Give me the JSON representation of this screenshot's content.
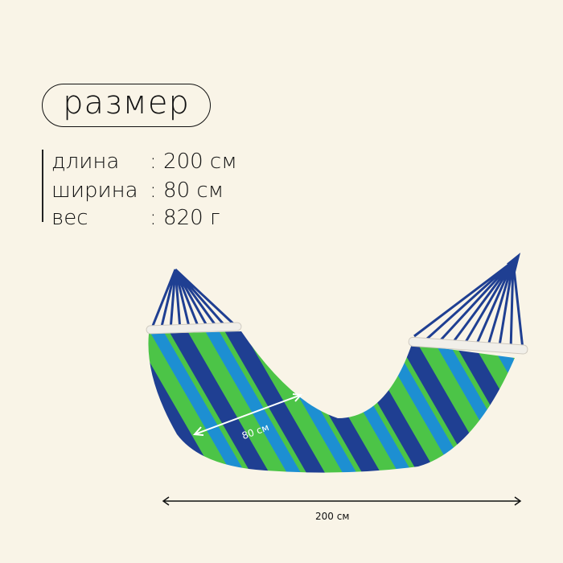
{
  "title": "размер",
  "specs": [
    {
      "label": "длина",
      "value": ": 200 см"
    },
    {
      "label": "ширина",
      "value": ": 80 см"
    },
    {
      "label": "вес",
      "value": ": 820 г"
    }
  ],
  "dimensions": {
    "width_label": "80 см",
    "length_label": "200 см"
  },
  "colors": {
    "background": "#f9f4e7",
    "green": "#4cc447",
    "blue": "#1d8fd2",
    "navy": "#1f3f92"
  }
}
